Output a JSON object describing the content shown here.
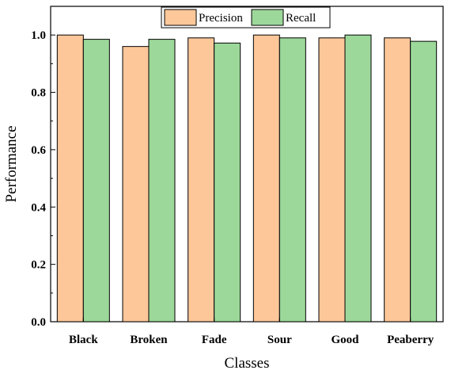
{
  "chart_data": {
    "type": "bar",
    "categories": [
      "Black",
      "Broken",
      "Fade",
      "Sour",
      "Good",
      "Peaberry"
    ],
    "series": [
      {
        "name": "Precision",
        "values": [
          1.0,
          0.96,
          0.99,
          1.0,
          0.99,
          0.99
        ],
        "color": "#FDC79A"
      },
      {
        "name": "Recall",
        "values": [
          0.985,
          0.985,
          0.972,
          0.99,
          1.0,
          0.978
        ],
        "color": "#9CD89A"
      }
    ],
    "xlabel": "Classes",
    "ylabel": "Performance",
    "ylim": [
      0,
      1.1
    ],
    "yticks": [
      "0.0",
      "0.2",
      "0.4",
      "0.6",
      "0.8",
      "1.0"
    ],
    "grid": false,
    "legend_position": "top-center"
  }
}
